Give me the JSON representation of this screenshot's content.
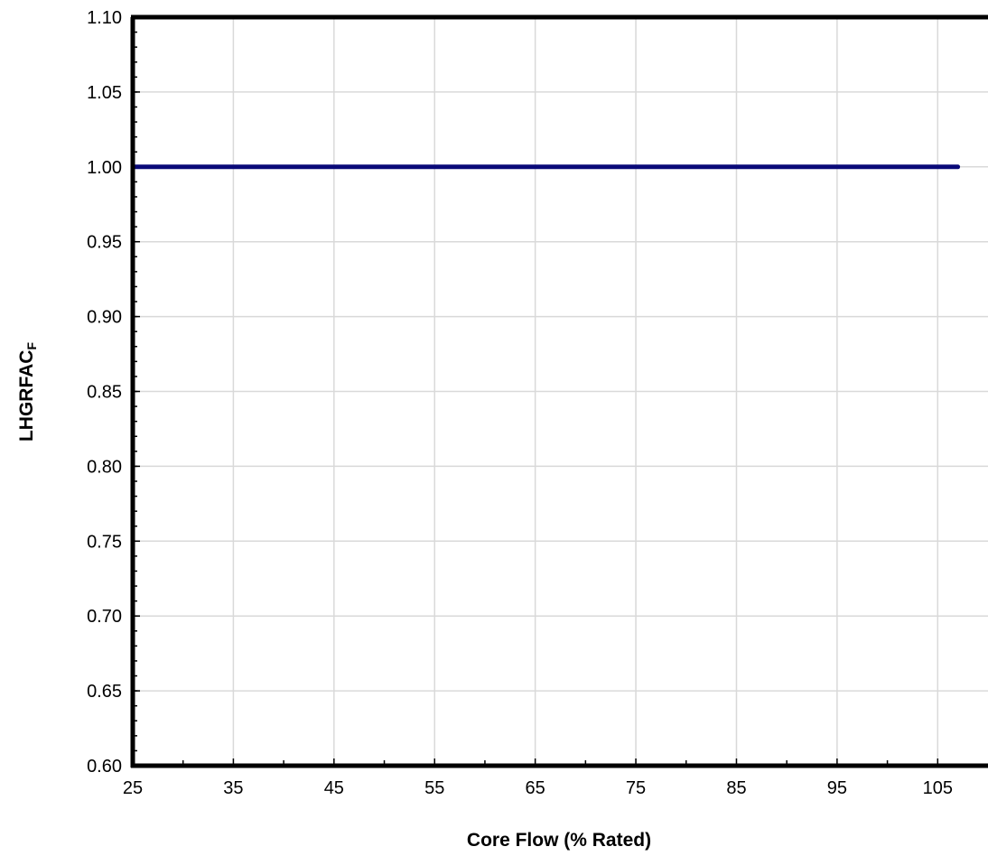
{
  "chart_data": {
    "type": "line",
    "title": "",
    "xlabel": "Core Flow (% Rated)",
    "ylabel": {
      "main": "LHGRFAC",
      "subscript": "F"
    },
    "xlim": [
      25,
      110
    ],
    "ylim": [
      0.6,
      1.1
    ],
    "x_ticks": [
      25,
      35,
      45,
      55,
      65,
      75,
      85,
      95,
      105
    ],
    "x_tick_labels": [
      "25",
      "35",
      "45",
      "55",
      "65",
      "75",
      "85",
      "95",
      "105"
    ],
    "y_ticks": [
      0.6,
      0.65,
      0.7,
      0.75,
      0.8,
      0.85,
      0.9,
      0.95,
      1.0,
      1.05,
      1.1
    ],
    "y_tick_labels": [
      "0.60",
      "0.65",
      "0.70",
      "0.75",
      "0.80",
      "0.85",
      "0.90",
      "0.95",
      "1.00",
      "1.05",
      "1.10"
    ],
    "grid": true,
    "legend": "none",
    "series": [
      {
        "x": [
          25,
          107
        ],
        "y": [
          1.0,
          1.0
        ],
        "color": "#0a0a78"
      }
    ]
  }
}
